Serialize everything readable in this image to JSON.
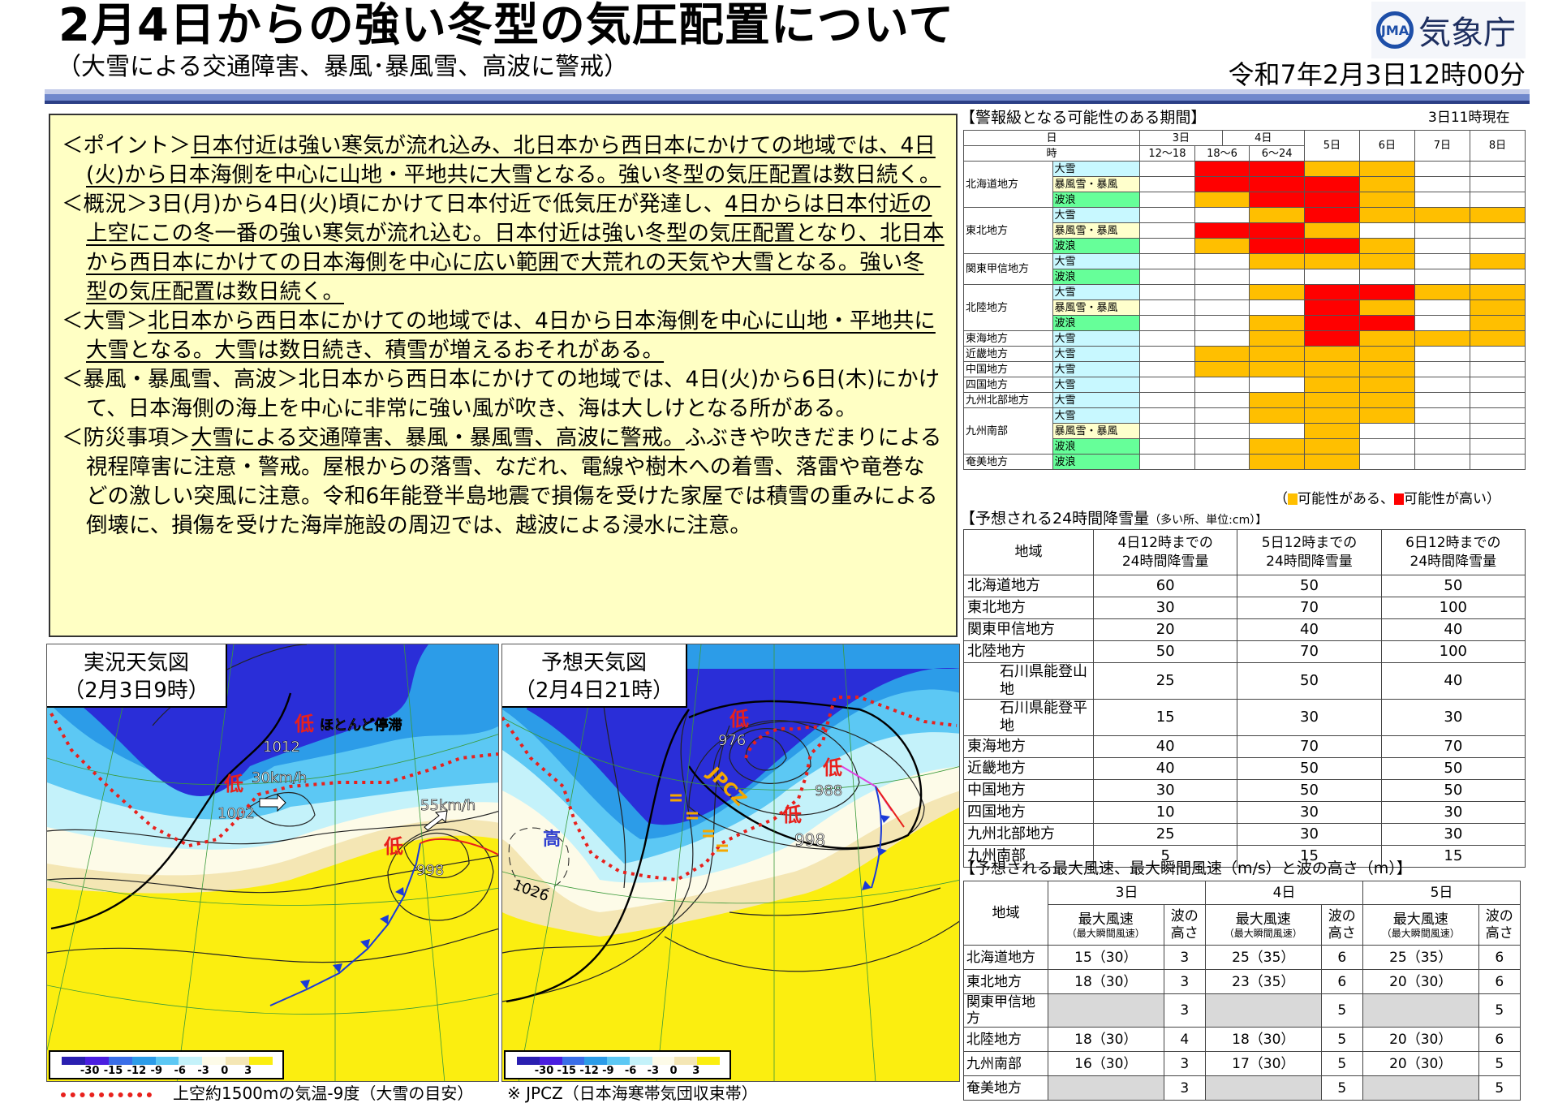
{
  "header": {
    "title": "2月4日からの強い冬型の気圧配置について",
    "subtitle": "（大雪による交通障害、暴風･暴風雪、高波に警戒）",
    "agency_logo": "気象庁",
    "issued": "令和7年2月3日12時00分"
  },
  "summary": {
    "paragraphs": [
      {
        "label": "＜ポイント＞",
        "segments": [
          {
            "text": "日本付近は強い寒気が流れ込み、北日本から西日本にかけての地域では、4日(火)から日本海側を中心に山地・平地共に大雪となる。強い冬型の気圧配置は数日続く。",
            "u": true
          }
        ]
      },
      {
        "label": "＜概況＞",
        "segments": [
          {
            "text": "3日(月)から4日(火)頃にかけて日本付近で低気圧が発達し、",
            "u": false
          },
          {
            "text": "4日からは日本付近の上空にこの冬一番の強い寒気が流れ込む。日本付近は強い冬型の気圧配置となり、北日本から西日本にかけての日本海側を中心に広い範囲で大荒れの天気や大雪となる。強い冬型の気圧配置は数日続く。",
            "u": true
          }
        ]
      },
      {
        "label": "＜大雪＞",
        "segments": [
          {
            "text": "北日本から西日本にかけての地域では、4日から日本海側を中心に山地・平地共に大雪となる。大雪は数日続き、積雪が増えるおそれがある。",
            "u": true
          }
        ]
      },
      {
        "label": "＜暴風・暴風雪、高波＞",
        "segments": [
          {
            "text": "北日本から西日本にかけての地域では、4日(火)から6日(木)にかけて、日本海側の海上を中心に非常に強い風が吹き、海は大しけとなる所がある。",
            "u": false
          }
        ]
      },
      {
        "label": "＜防災事項＞",
        "segments": [
          {
            "text": "大雪による交通障害、暴風・暴風雪、高波に警戒。",
            "u": true
          },
          {
            "text": "ふぶきや吹きだまりによる視程障害に注意・警戒。屋根からの落雪、なだれ、電線や樹木への着雪、落雷や竜巻などの激しい突風に注意。令和6年能登半島地震で損傷を受けた家屋では積雪の重みによる倒壊に、損傷を受けた海岸施設の周辺では、越波による浸水に注意。",
            "u": false
          }
        ]
      }
    ]
  },
  "maps": {
    "actual": {
      "title": "実況天気図",
      "time": "（2月3日9時）",
      "labels": {
        "low1": "低",
        "stationary": "ほとんど停滞",
        "p1012": "1012",
        "low2": "低",
        "speed30": "30km/h",
        "p1002": "1002",
        "speed55": "55km/h",
        "low3": "低",
        "p998": "998"
      }
    },
    "forecast": {
      "title": "予想天気図",
      "time": "（2月4日21時）",
      "labels": {
        "low1": "低",
        "p976": "976",
        "low2": "低",
        "p988": "988",
        "low3": "低",
        "p998": "998",
        "high": "高",
        "p1026": "1026",
        "jpcz": "JPCZ"
      }
    },
    "legend_ticks": [
      "-30",
      "-15",
      "-12",
      "-9",
      "-6",
      "-3",
      "0",
      "3"
    ],
    "legend_colors": [
      "#2a1fb0",
      "#4a1ee0",
      "#3a6ee8",
      "#2c9ce8",
      "#5cc8f4",
      "#c4f2fa",
      "#fdfbe8",
      "#f4e6b4",
      "#fbee10"
    ],
    "caption_dotted": "上空約1500mの気温-9度（大雪の目安）",
    "caption_jpcz": "※ JPCZ（日本海寒帯気団収束帯）"
  },
  "warning": {
    "title": "【警報級となる可能性のある期間】",
    "as_of": "3日11時現在",
    "h_day": "日",
    "h_time": "時",
    "days": [
      "3日",
      "4日",
      "5日",
      "6日",
      "7日",
      "8日"
    ],
    "periods": [
      "12～18",
      "18～6",
      "6～24"
    ],
    "colors": {
      "possible": "#ffbf00",
      "high": "#ff0000",
      "大雪": "#c8f8ff",
      "暴風雪・暴風": "#ffffcc",
      "波浪": "#66ff99"
    },
    "regions": [
      {
        "name": "北海道地方",
        "rows": [
          {
            "type": "大雪",
            "levels": [
              0,
              2,
              2,
              1,
              1,
              0,
              0
            ]
          },
          {
            "type": "暴風雪・暴風",
            "levels": [
              0,
              2,
              2,
              2,
              1,
              0,
              0
            ]
          },
          {
            "type": "波浪",
            "levels": [
              0,
              1,
              2,
              2,
              1,
              0,
              0
            ]
          }
        ]
      },
      {
        "name": "東北地方",
        "rows": [
          {
            "type": "大雪",
            "levels": [
              0,
              0,
              1,
              2,
              1,
              1,
              1
            ]
          },
          {
            "type": "暴風雪・暴風",
            "levels": [
              0,
              2,
              2,
              1,
              0,
              0,
              0
            ]
          },
          {
            "type": "波浪",
            "levels": [
              0,
              1,
              2,
              2,
              1,
              0,
              0
            ]
          }
        ]
      },
      {
        "name": "関東甲信地方",
        "rows": [
          {
            "type": "大雪",
            "levels": [
              0,
              0,
              1,
              1,
              1,
              0,
              1
            ]
          },
          {
            "type": "波浪",
            "levels": [
              0,
              0,
              0,
              0,
              0,
              0,
              0
            ]
          }
        ]
      },
      {
        "name": "北陸地方",
        "rows": [
          {
            "type": "大雪",
            "levels": [
              0,
              0,
              1,
              2,
              2,
              1,
              1
            ]
          },
          {
            "type": "暴風雪・暴風",
            "levels": [
              0,
              0,
              0,
              2,
              1,
              0,
              1
            ]
          },
          {
            "type": "波浪",
            "levels": [
              0,
              0,
              1,
              2,
              2,
              0,
              1
            ]
          }
        ]
      },
      {
        "name": "東海地方",
        "rows": [
          {
            "type": "大雪",
            "levels": [
              0,
              0,
              1,
              2,
              1,
              1,
              1
            ]
          }
        ]
      },
      {
        "name": "近畿地方",
        "rows": [
          {
            "type": "大雪",
            "levels": [
              0,
              1,
              1,
              1,
              1,
              0,
              0
            ]
          }
        ]
      },
      {
        "name": "中国地方",
        "rows": [
          {
            "type": "大雪",
            "levels": [
              0,
              1,
              1,
              1,
              1,
              0,
              0
            ]
          }
        ]
      },
      {
        "name": "四国地方",
        "rows": [
          {
            "type": "大雪",
            "levels": [
              0,
              0,
              0,
              1,
              1,
              0,
              0
            ]
          }
        ]
      },
      {
        "name": "九州北部地方",
        "rows": [
          {
            "type": "大雪",
            "levels": [
              0,
              0,
              1,
              1,
              1,
              0,
              0
            ]
          }
        ]
      },
      {
        "name": "九州南部",
        "rows": [
          {
            "type": "大雪",
            "levels": [
              0,
              0,
              1,
              1,
              1,
              0,
              0
            ]
          },
          {
            "type": "暴風雪・暴風",
            "levels": [
              0,
              0,
              0,
              1,
              0,
              0,
              0
            ]
          },
          {
            "type": "波浪",
            "levels": [
              0,
              0,
              1,
              1,
              0,
              0,
              0
            ]
          }
        ]
      },
      {
        "name": "奄美地方",
        "rows": [
          {
            "type": "波浪",
            "levels": [
              0,
              0,
              1,
              1,
              0,
              0,
              0
            ]
          }
        ]
      }
    ],
    "legend_open": "（",
    "legend_possible": "可能性がある、",
    "legend_high": "可能性が高い）"
  },
  "snow": {
    "title": "【予想される24時間降雪量",
    "title_small": "（多い所、単位:cm）】",
    "headers": [
      "地域",
      "4日12時までの\n24時間降雪量",
      "5日12時までの\n24時間降雪量",
      "6日12時までの\n24時間降雪量"
    ],
    "rows": [
      {
        "region": "北海道地方",
        "values": [
          "60",
          "50",
          "50"
        ]
      },
      {
        "region": "東北地方",
        "values": [
          "30",
          "70",
          "100"
        ]
      },
      {
        "region": "関東甲信地方",
        "values": [
          "20",
          "40",
          "40"
        ]
      },
      {
        "region": "北陸地方",
        "values": [
          "50",
          "70",
          "100"
        ]
      },
      {
        "region": "石川県能登山地",
        "values": [
          "25",
          "50",
          "40"
        ],
        "sub": true
      },
      {
        "region": "石川県能登平地",
        "values": [
          "15",
          "30",
          "30"
        ],
        "sub": true
      },
      {
        "region": "東海地方",
        "values": [
          "40",
          "70",
          "70"
        ]
      },
      {
        "region": "近畿地方",
        "values": [
          "40",
          "50",
          "50"
        ]
      },
      {
        "region": "中国地方",
        "values": [
          "30",
          "50",
          "50"
        ]
      },
      {
        "region": "四国地方",
        "values": [
          "10",
          "30",
          "30"
        ]
      },
      {
        "region": "九州北部地方",
        "values": [
          "25",
          "30",
          "30"
        ]
      },
      {
        "region": "九州南部",
        "values": [
          "5",
          "15",
          "15"
        ]
      }
    ]
  },
  "wind": {
    "title": "【予想される最大風速、最大瞬間風速（m/s）と波の高さ（m）】",
    "h_region": "地域",
    "days": [
      "3日",
      "4日",
      "5日"
    ],
    "h_wind": "最大風速",
    "h_gust": "（最大瞬間風速）",
    "h_wave": "波の\n高さ",
    "rows": [
      {
        "region": "北海道地方",
        "values": [
          "15（30）",
          "3",
          "25（35）",
          "6",
          "25（35）",
          "6"
        ]
      },
      {
        "region": "東北地方",
        "values": [
          "18（30）",
          "3",
          "23（35）",
          "6",
          "20（30）",
          "6"
        ]
      },
      {
        "region": "関東甲信地方",
        "values": [
          "",
          "3",
          "",
          "5",
          "",
          "5"
        ]
      },
      {
        "region": "北陸地方",
        "values": [
          "18（30）",
          "4",
          "18（30）",
          "5",
          "20（30）",
          "6"
        ]
      },
      {
        "region": "九州南部",
        "values": [
          "16（30）",
          "3",
          "17（30）",
          "5",
          "20（30）",
          "5"
        ]
      },
      {
        "region": "奄美地方",
        "values": [
          "",
          "3",
          "",
          "5",
          "",
          "5"
        ]
      }
    ]
  }
}
